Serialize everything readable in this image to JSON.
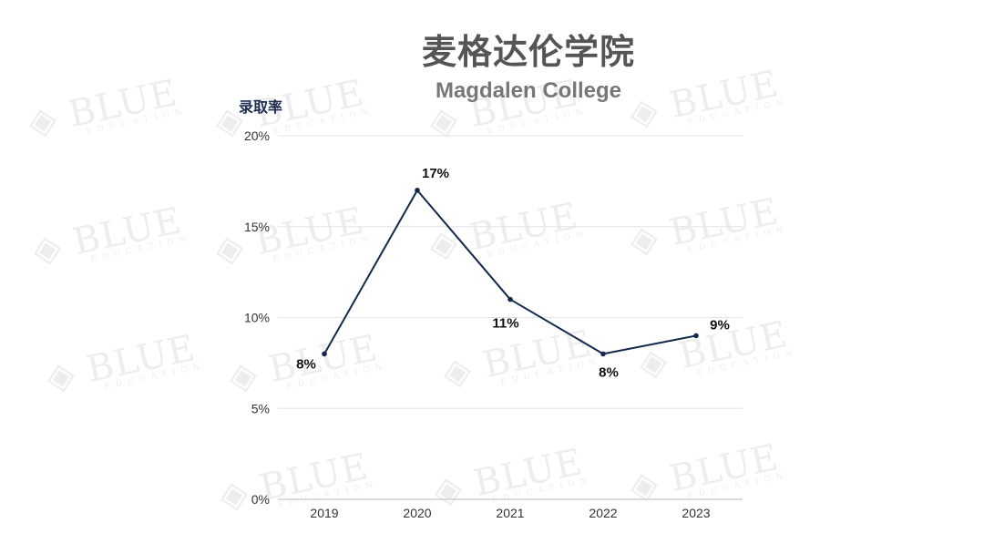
{
  "header": {
    "title": "麦格达伦学院",
    "subtitle": "Magdalen College"
  },
  "watermark": {
    "word": "BLUE",
    "sub": "EDUCATION"
  },
  "colors": {
    "line": "#12284c",
    "grid": "#e3e3e3",
    "axis": "#cfcfcf",
    "tick_text": "#333333"
  },
  "chart_data": {
    "type": "line",
    "title": "麦格达伦学院",
    "subtitle": "Magdalen College",
    "ylabel": "录取率",
    "xlabel": "",
    "x": [
      "2019",
      "2020",
      "2021",
      "2022",
      "2023"
    ],
    "values": [
      8,
      17,
      11,
      8,
      9
    ],
    "data_labels": [
      "8%",
      "17%",
      "11%",
      "8%",
      "9%"
    ],
    "ylim": [
      0,
      20
    ],
    "yticks": [
      0,
      5,
      10,
      15,
      20
    ],
    "ytick_labels": [
      "0%",
      "5%",
      "10%",
      "15%",
      "20%"
    ],
    "grid": true,
    "legend": "none"
  }
}
